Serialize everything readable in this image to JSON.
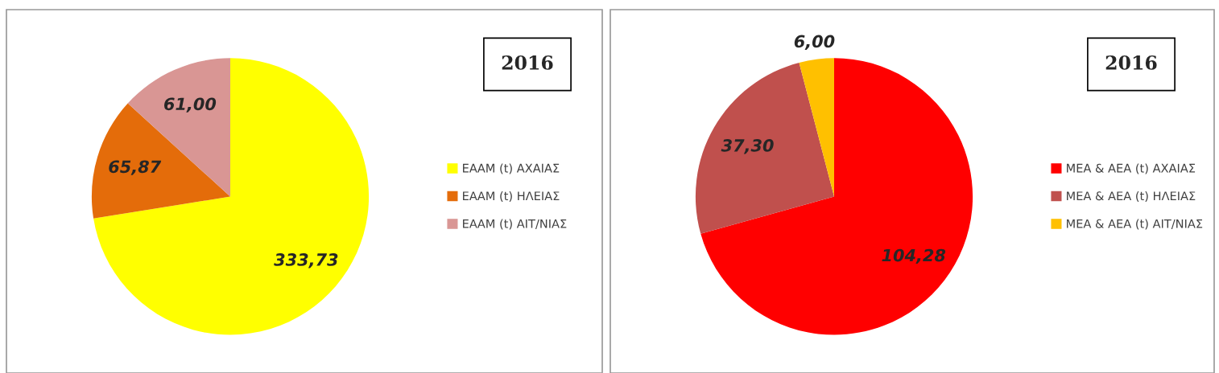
{
  "chart_data": [
    {
      "type": "pie",
      "title": "2016",
      "categories": [
        "ΕΑΑΜ (t) ΑΧΑΙΑΣ",
        "ΕΑΑΜ (t) ΗΛΕΙΑΣ",
        "ΕΑΑΜ (t) ΑΙΤ/ΝΙΑΣ"
      ],
      "values": [
        333.73,
        65.87,
        61.0
      ],
      "value_labels": [
        "333,73",
        "65,87",
        "61,00"
      ],
      "colors": [
        "#ffff00",
        "#e46c0a",
        "#d99694"
      ],
      "legend": "right"
    },
    {
      "type": "pie",
      "title": "2016",
      "categories": [
        "ΜΕΑ & ΑΕΑ (t) ΑΧΑΙΑΣ",
        "ΜΕΑ & ΑΕΑ (t) ΗΛΕΙΑΣ",
        "ΜΕΑ & ΑΕΑ (t) ΑΙΤ/ΝΙΑΣ"
      ],
      "values": [
        104.28,
        37.3,
        6.0
      ],
      "value_labels": [
        "104,28",
        "37,30",
        "6,00"
      ],
      "colors": [
        "#ff0000",
        "#c0504d",
        "#ffc000"
      ],
      "legend": "right"
    }
  ]
}
